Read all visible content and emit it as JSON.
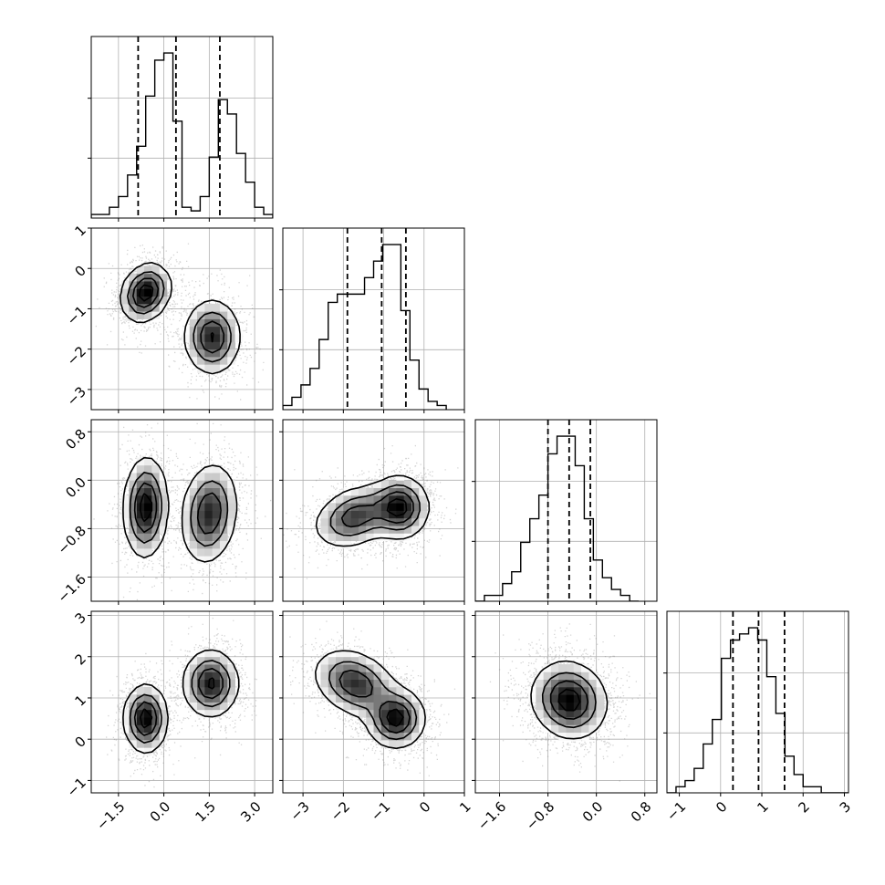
{
  "chart_data": {
    "type": "corner",
    "title": "",
    "colors": {
      "points": "#888888",
      "density": "#000000",
      "contour_fill": "#ffffff",
      "grid": "#b0b0b0"
    },
    "grid": true,
    "parameters": [
      {
        "range": [
          -2.4,
          3.6
        ],
        "ticks": [
          -1.5,
          0.0,
          1.5,
          3.0
        ],
        "tick_labels": [
          "−1.5",
          "0.0",
          "1.5",
          "3.0"
        ],
        "quantiles": [
          -0.85,
          0.4,
          1.85
        ],
        "hist": {
          "start": -2.4,
          "step": 0.3,
          "counts": [
            1,
            1,
            3,
            6,
            12,
            20,
            34,
            44,
            46,
            27,
            3,
            2,
            6,
            17,
            33,
            29,
            18,
            10,
            3,
            1
          ]
        }
      },
      {
        "range": [
          -3.5,
          1.0
        ],
        "ticks": [
          -3,
          -2,
          -1,
          0,
          1
        ],
        "tick_labels": [
          "−3",
          "−2",
          "−1",
          "0",
          "1"
        ],
        "quantiles": [
          -1.9,
          -1.05,
          -0.45
        ],
        "hist": {
          "start": -3.5,
          "step": 0.225,
          "counts": [
            1,
            3,
            6,
            10,
            17,
            26,
            28,
            28,
            28,
            32,
            36,
            40,
            40,
            24,
            12,
            5,
            2,
            1
          ]
        }
      },
      {
        "range": [
          -2.0,
          1.0
        ],
        "ticks": [
          -1.6,
          -0.8,
          0.0,
          0.8
        ],
        "tick_labels": [
          "−1.6",
          "−0.8",
          "0.0",
          "0.8"
        ],
        "quantiles": [
          -0.8,
          -0.45,
          -0.1
        ],
        "hist": {
          "start": -2.0,
          "step": 0.15,
          "counts": [
            0,
            1,
            1,
            3,
            5,
            10,
            14,
            18,
            25,
            28,
            28,
            23,
            14,
            7,
            4,
            2,
            1,
            0
          ]
        }
      },
      {
        "range": [
          -1.3,
          3.1
        ],
        "ticks": [
          -1,
          0,
          1,
          2,
          3
        ],
        "tick_labels": [
          "−1",
          "0",
          "1",
          "2",
          "3"
        ],
        "quantiles": [
          0.3,
          0.92,
          1.55
        ],
        "hist": {
          "start": -1.3,
          "step": 0.22,
          "counts": [
            0,
            1,
            2,
            4,
            8,
            12,
            22,
            25,
            26,
            27,
            25,
            19,
            13,
            6,
            3,
            1,
            1,
            0,
            0,
            0
          ]
        }
      }
    ],
    "y_axis": [
      null,
      {
        "ticks": [
          1,
          0,
          -1,
          -2,
          -3
        ],
        "tick_labels": [
          "1",
          "0",
          "−1",
          "−2",
          "−3"
        ]
      },
      {
        "ticks": [
          0.8,
          0.0,
          -0.8,
          -1.6
        ],
        "tick_labels": [
          "0.8",
          "0.0",
          "−0.8",
          "−1.6"
        ]
      },
      {
        "ticks": [
          3,
          2,
          1,
          0,
          -1
        ],
        "tick_labels": [
          "3",
          "2",
          "1",
          "0",
          "−1"
        ]
      }
    ],
    "joint_modes": {
      "1_0": [
        {
          "mx": -0.6,
          "my": -0.6,
          "sx": 0.4,
          "sy": 0.35,
          "w": 1.0,
          "rho": 0.2
        },
        {
          "mx": 1.6,
          "my": -1.7,
          "sx": 0.45,
          "sy": 0.45,
          "w": 0.85,
          "rho": 0.0
        }
      ],
      "2_0": [
        {
          "mx": -0.6,
          "my": -0.45,
          "sx": 0.35,
          "sy": 0.4,
          "w": 1.0,
          "rho": 0.05
        },
        {
          "mx": 1.5,
          "my": -0.55,
          "sx": 0.45,
          "sy": 0.4,
          "w": 0.85,
          "rho": 0.15
        }
      ],
      "3_0": [
        {
          "mx": -0.6,
          "my": 0.5,
          "sx": 0.35,
          "sy": 0.4,
          "w": 1.0,
          "rho": 0.0
        },
        {
          "mx": 1.55,
          "my": 1.35,
          "sx": 0.45,
          "sy": 0.4,
          "w": 0.9,
          "rho": 0.0
        }
      ],
      "2_1": [
        {
          "mx": -0.6,
          "my": -0.45,
          "sx": 0.35,
          "sy": 0.25,
          "w": 1.0,
          "rho": 0.0
        },
        {
          "mx": -1.7,
          "my": -0.6,
          "sx": 0.5,
          "sy": 0.25,
          "w": 0.8,
          "rho": 0.3
        }
      ],
      "3_1": [
        {
          "mx": -0.7,
          "my": 0.5,
          "sx": 0.35,
          "sy": 0.35,
          "w": 1.0,
          "rho": 0.0
        },
        {
          "mx": -1.7,
          "my": 1.35,
          "sx": 0.5,
          "sy": 0.4,
          "w": 0.85,
          "rho": -0.3
        }
      ],
      "3_2": [
        {
          "mx": -0.45,
          "my": 0.95,
          "sx": 0.3,
          "sy": 0.45,
          "w": 1.0,
          "rho": -0.1
        }
      ]
    }
  }
}
